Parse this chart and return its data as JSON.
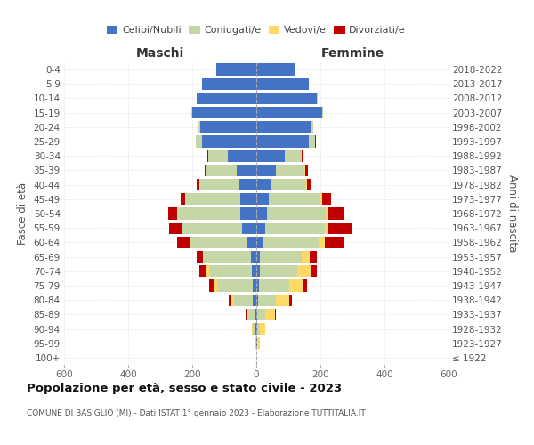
{
  "age_groups": [
    "100+",
    "95-99",
    "90-94",
    "85-89",
    "80-84",
    "75-79",
    "70-74",
    "65-69",
    "60-64",
    "55-59",
    "50-54",
    "45-49",
    "40-44",
    "35-39",
    "30-34",
    "25-29",
    "20-24",
    "15-19",
    "10-14",
    "5-9",
    "0-4"
  ],
  "birth_years": [
    "≤ 1922",
    "1923-1927",
    "1928-1932",
    "1933-1937",
    "1938-1942",
    "1943-1947",
    "1948-1952",
    "1953-1957",
    "1958-1962",
    "1963-1967",
    "1968-1972",
    "1973-1977",
    "1978-1982",
    "1983-1987",
    "1988-1992",
    "1993-1997",
    "1998-2002",
    "2003-2007",
    "2008-2012",
    "2013-2017",
    "2018-2022"
  ],
  "males_celibe": [
    0,
    1,
    2,
    4,
    10,
    12,
    15,
    18,
    30,
    45,
    50,
    50,
    55,
    60,
    90,
    170,
    175,
    200,
    185,
    170,
    125
  ],
  "males_coniugato": [
    0,
    2,
    8,
    22,
    60,
    110,
    130,
    145,
    175,
    185,
    195,
    170,
    120,
    95,
    60,
    18,
    8,
    3,
    1,
    0,
    0
  ],
  "males_vedovo": [
    0,
    1,
    3,
    5,
    8,
    10,
    12,
    5,
    3,
    3,
    3,
    2,
    2,
    1,
    0,
    1,
    0,
    0,
    0,
    0,
    0
  ],
  "males_divorziato": [
    0,
    0,
    1,
    3,
    8,
    15,
    20,
    18,
    38,
    40,
    28,
    14,
    10,
    5,
    2,
    1,
    1,
    0,
    0,
    0,
    0
  ],
  "females_nubile": [
    0,
    2,
    2,
    3,
    5,
    8,
    10,
    10,
    22,
    28,
    32,
    38,
    48,
    62,
    90,
    165,
    170,
    205,
    190,
    165,
    120
  ],
  "females_coniugata": [
    0,
    2,
    8,
    24,
    55,
    95,
    118,
    132,
    172,
    185,
    185,
    162,
    108,
    88,
    52,
    18,
    8,
    3,
    1,
    0,
    0
  ],
  "females_vedova": [
    1,
    6,
    18,
    32,
    42,
    42,
    42,
    26,
    20,
    10,
    8,
    5,
    3,
    2,
    1,
    1,
    0,
    0,
    0,
    0,
    0
  ],
  "females_divorziata": [
    0,
    0,
    1,
    3,
    8,
    14,
    18,
    20,
    58,
    75,
    48,
    28,
    14,
    10,
    4,
    2,
    1,
    0,
    0,
    0,
    0
  ],
  "color_celibe": "#4472c4",
  "color_coniugato": "#c5d6a7",
  "color_vedovo": "#ffd966",
  "color_divorziato": "#c00000",
  "xlim_min": -600,
  "xlim_max": 600,
  "xticks": [
    -600,
    -400,
    -200,
    0,
    200,
    400,
    600
  ],
  "xticklabels": [
    "600",
    "400",
    "200",
    "0",
    "200",
    "400",
    "600"
  ],
  "title": "Popolazione per età, sesso e stato civile - 2023",
  "subtitle": "COMUNE DI BASIGLIO (MI) - Dati ISTAT 1° gennaio 2023 - Elaborazione TUTTITALIA.IT",
  "ylabel_left": "Fasce di età",
  "ylabel_right": "Anni di nascita",
  "label_maschi": "Maschi",
  "label_femmine": "Femmine",
  "legend_labels": [
    "Celibi/Nubili",
    "Coniugati/e",
    "Vedovi/e",
    "Divorziati/e"
  ],
  "bg_color": "#ffffff",
  "bar_height": 0.82
}
